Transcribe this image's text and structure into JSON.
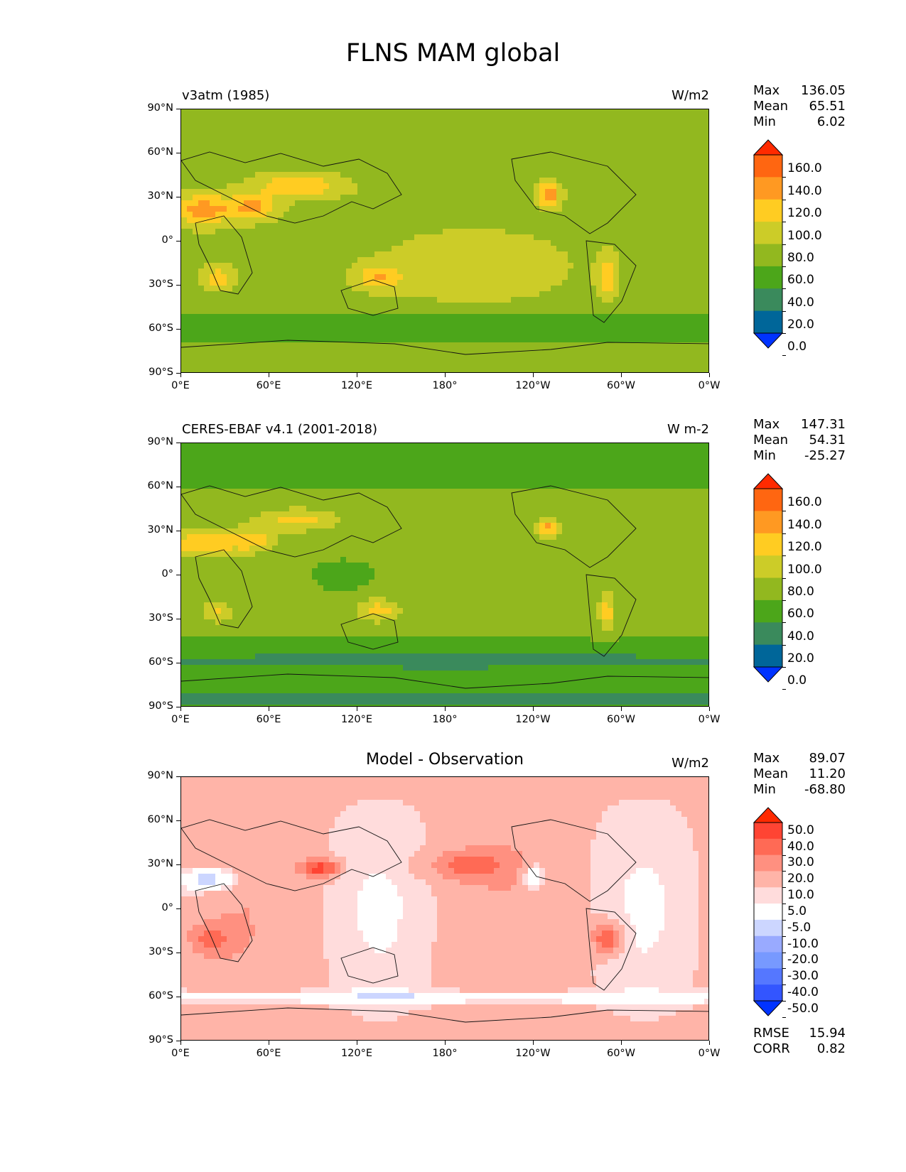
{
  "title": "FLNS MAM global",
  "panels": [
    {
      "id": "model",
      "left_title": "v3atm (1985)",
      "center_title": "",
      "units": "W/m2",
      "stats": [
        [
          "Max",
          "136.05"
        ],
        [
          "Mean",
          "65.51"
        ],
        [
          "Min",
          "6.02"
        ]
      ],
      "colorbar": {
        "colors": [
          "#0033ff",
          "#006699",
          "#3a8a5c",
          "#4ca61a",
          "#92b81f",
          "#cccc28",
          "#ffcc22",
          "#ff9922",
          "#ff6611",
          "#ff2a00"
        ],
        "labels": [
          "160.0",
          "140.0",
          "120.0",
          "100.0",
          "80.0",
          "60.0",
          "40.0",
          "20.0",
          "0.0"
        ]
      },
      "footer": []
    },
    {
      "id": "obs",
      "left_title": "CERES-EBAF v4.1 (2001-2018)",
      "center_title": "",
      "units": "W m-2",
      "stats": [
        [
          "Max",
          "147.31"
        ],
        [
          "Mean",
          "54.31"
        ],
        [
          "Min",
          "-25.27"
        ]
      ],
      "colorbar": {
        "colors": [
          "#0033ff",
          "#006699",
          "#3a8a5c",
          "#4ca61a",
          "#92b81f",
          "#cccc28",
          "#ffcc22",
          "#ff9922",
          "#ff6611",
          "#ff2a00"
        ],
        "labels": [
          "160.0",
          "140.0",
          "120.0",
          "100.0",
          "80.0",
          "60.0",
          "40.0",
          "20.0",
          "0.0"
        ]
      },
      "footer": []
    },
    {
      "id": "diff",
      "left_title": "",
      "center_title": "Model - Observation",
      "units": "W/m2",
      "stats": [
        [
          "Max",
          "89.07"
        ],
        [
          "Mean",
          "11.20"
        ],
        [
          "Min",
          "-68.80"
        ]
      ],
      "colorbar": {
        "colors": [
          "#0033ff",
          "#3355ff",
          "#5577ff",
          "#7799ff",
          "#99aaff",
          "#ccd6ff",
          "#ffffff",
          "#ffdcdc",
          "#ffb4a8",
          "#ff9080",
          "#ff6a55",
          "#ff4433",
          "#ff2a00"
        ],
        "labels": [
          "50.0",
          "40.0",
          "30.0",
          "20.0",
          "10.0",
          "5.0",
          "-5.0",
          "-10.0",
          "-20.0",
          "-30.0",
          "-40.0",
          "-50.0"
        ]
      },
      "footer": [
        [
          "RMSE",
          "15.94"
        ],
        [
          "CORR",
          "0.82"
        ]
      ]
    }
  ],
  "lat_labels": [
    "90°N",
    "60°N",
    "30°N",
    "0°",
    "30°S",
    "60°S",
    "90°S"
  ],
  "lon_labels": [
    "0°E",
    "60°E",
    "120°E",
    "180°",
    "120°W",
    "60°W",
    "0°W"
  ]
}
